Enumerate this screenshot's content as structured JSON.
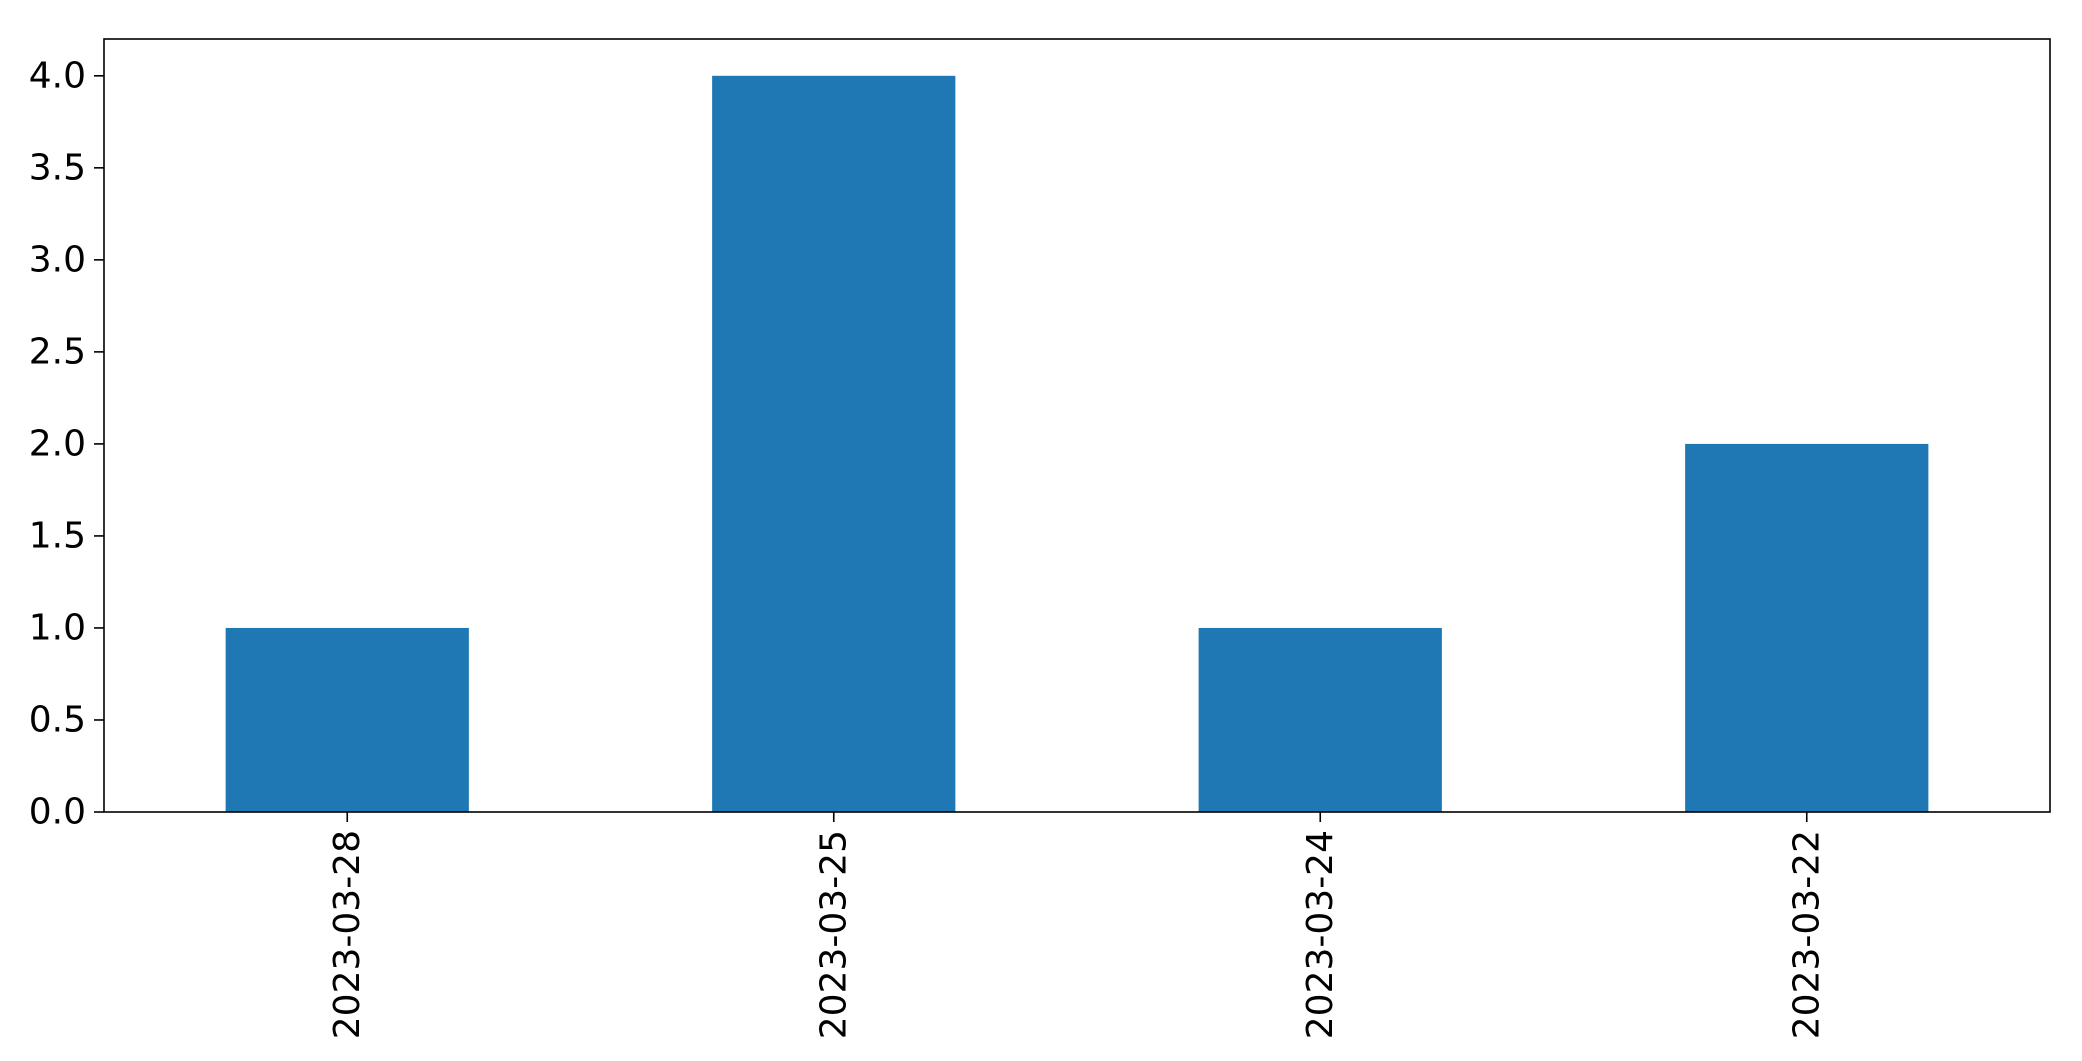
{
  "chart_data": {
    "type": "bar",
    "categories": [
      "2023-03-28",
      "2023-03-25",
      "2023-03-24",
      "2023-03-22"
    ],
    "values": [
      1,
      4,
      1,
      2
    ],
    "title": "",
    "xlabel": "",
    "ylabel": "",
    "ylim": [
      0,
      4.2
    ],
    "yticks": [
      0.0,
      0.5,
      1.0,
      1.5,
      2.0,
      2.5,
      3.0,
      3.5,
      4.0
    ],
    "ytick_labels": [
      "0.0",
      "0.5",
      "1.0",
      "1.5",
      "2.0",
      "2.5",
      "3.0",
      "3.5",
      "4.0"
    ],
    "bar_color": "#1f77b4",
    "grid": false,
    "legend": false,
    "xtick_rotation": "vertical"
  }
}
